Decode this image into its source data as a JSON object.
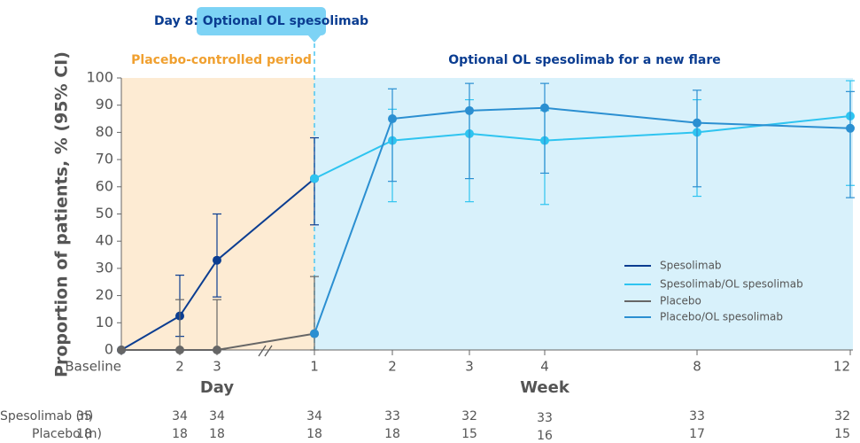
{
  "chart_data": {
    "type": "line",
    "ylabel": "Proportion of patients, % (95% CI)",
    "annotations": {
      "marker": "Day 8: Optional OL spesolimab",
      "period1": "Placebo-controlled period",
      "period2": "Optional OL spesolimab for a new flare"
    },
    "x_groups": [
      "Day",
      "Week"
    ],
    "categories": [
      "Baseline",
      "2",
      "3",
      "1",
      "2",
      "3",
      "4",
      "8",
      "12"
    ],
    "ylim": [
      0,
      100
    ],
    "yticks": [
      0,
      10,
      20,
      30,
      40,
      50,
      60,
      70,
      80,
      90,
      100
    ],
    "legend": "lower right",
    "series": [
      {
        "name": "Spesolimab",
        "color": "#0b3d91",
        "values": [
          0,
          12.5,
          33,
          63,
          null,
          null,
          null,
          null,
          null
        ],
        "lower": [
          null,
          5,
          19.5,
          46,
          null,
          null,
          null,
          null,
          null
        ],
        "upper": [
          null,
          27.5,
          50,
          78,
          null,
          null,
          null,
          null,
          null
        ]
      },
      {
        "name": "Spesolimab/OL spesolimab",
        "color": "#2ec4f0",
        "values": [
          null,
          null,
          null,
          63,
          77,
          79.5,
          77,
          80,
          86
        ],
        "lower": [
          null,
          null,
          null,
          null,
          54.5,
          54.5,
          53.5,
          56.5,
          60.5
        ],
        "upper": [
          null,
          null,
          null,
          null,
          88.5,
          92,
          88,
          92,
          99
        ]
      },
      {
        "name": "Placebo",
        "color": "#666666",
        "values": [
          0,
          0,
          0,
          6,
          null,
          null,
          null,
          null,
          null
        ],
        "lower": [
          null,
          0,
          0,
          0,
          null,
          null,
          null,
          null,
          null
        ],
        "upper": [
          null,
          18.5,
          18.5,
          27,
          null,
          null,
          null,
          null,
          null
        ]
      },
      {
        "name": "Placebo/OL spesolimab",
        "color": "#2b8fd1",
        "values": [
          null,
          null,
          null,
          6,
          85,
          88,
          89,
          83.5,
          81.5
        ],
        "lower": [
          null,
          null,
          null,
          null,
          62,
          63,
          65,
          60,
          56
        ],
        "upper": [
          null,
          null,
          null,
          null,
          96,
          98,
          98,
          95.5,
          95
        ]
      }
    ],
    "table": {
      "rows": [
        {
          "label": "Spesolimab (n)",
          "values": [
            35,
            34,
            34,
            34,
            33,
            32,
            33,
            33,
            32
          ]
        },
        {
          "label": "Placebo (n)",
          "values": [
            18,
            18,
            18,
            18,
            18,
            15,
            16,
            17,
            15
          ]
        }
      ]
    }
  }
}
